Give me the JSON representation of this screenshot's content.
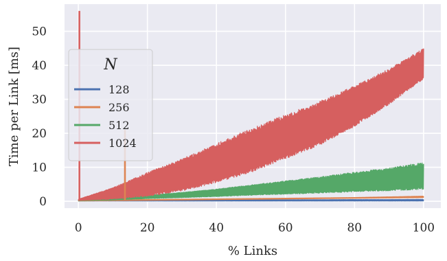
{
  "chart_data": {
    "type": "line",
    "title": "",
    "xlabel": "% Links",
    "ylabel": "Time per Link [ms]",
    "xlim": [
      -4,
      105
    ],
    "ylim": [
      -2,
      58
    ],
    "xticks": [
      0,
      20,
      40,
      60,
      80,
      100
    ],
    "yticks": [
      0,
      10,
      20,
      30,
      40,
      50
    ],
    "grid": true,
    "background": "#eaeaf2",
    "legend": {
      "title": "N",
      "placement": "upper-left"
    },
    "series": [
      {
        "name": "128",
        "color": "#4c72b0",
        "x": [
          0,
          10,
          20,
          30,
          40,
          50,
          60,
          70,
          80,
          90,
          100
        ],
        "low": [
          0.1,
          0.1,
          0.1,
          0.1,
          0.1,
          0.1,
          0.1,
          0.1,
          0.1,
          0.1,
          0.1
        ],
        "high": [
          0.3,
          0.3,
          0.35,
          0.35,
          0.4,
          0.4,
          0.45,
          0.45,
          0.5,
          0.5,
          0.55
        ]
      },
      {
        "name": "256",
        "color": "#dd8452",
        "x": [
          0,
          10,
          20,
          30,
          40,
          50,
          60,
          70,
          80,
          90,
          100
        ],
        "low": [
          0.1,
          0.2,
          0.3,
          0.4,
          0.5,
          0.6,
          0.7,
          0.8,
          0.9,
          1.0,
          1.1
        ],
        "high": [
          0.3,
          0.4,
          0.5,
          0.6,
          0.7,
          0.8,
          0.9,
          1.0,
          1.1,
          1.3,
          1.5
        ]
      },
      {
        "name": "512",
        "color": "#55a868",
        "x": [
          0,
          10,
          20,
          30,
          40,
          50,
          60,
          70,
          80,
          90,
          100
        ],
        "low": [
          0.2,
          0.4,
          0.8,
          1.1,
          1.4,
          1.8,
          2.1,
          2.4,
          2.8,
          3.1,
          3.5
        ],
        "high": [
          0.4,
          1.0,
          1.8,
          2.6,
          3.6,
          4.8,
          6.0,
          7.2,
          8.6,
          9.8,
          11.5
        ]
      },
      {
        "name": "1024",
        "color": "#d65f5f",
        "x": [
          0,
          10,
          20,
          30,
          40,
          50,
          60,
          70,
          80,
          90,
          100
        ],
        "low": [
          0.3,
          0.6,
          1.5,
          3.0,
          5.5,
          8.5,
          12.5,
          16.5,
          22.0,
          28.5,
          36.0
        ],
        "high": [
          0.6,
          4.0,
          8.5,
          12.5,
          17.0,
          21.5,
          25.5,
          29.5,
          34.0,
          39.0,
          45.0
        ]
      }
    ],
    "annotations": [
      {
        "series": "1024",
        "x": 0.3,
        "y": 56
      },
      {
        "series": "256",
        "x": 13.5,
        "y": 21
      }
    ]
  }
}
